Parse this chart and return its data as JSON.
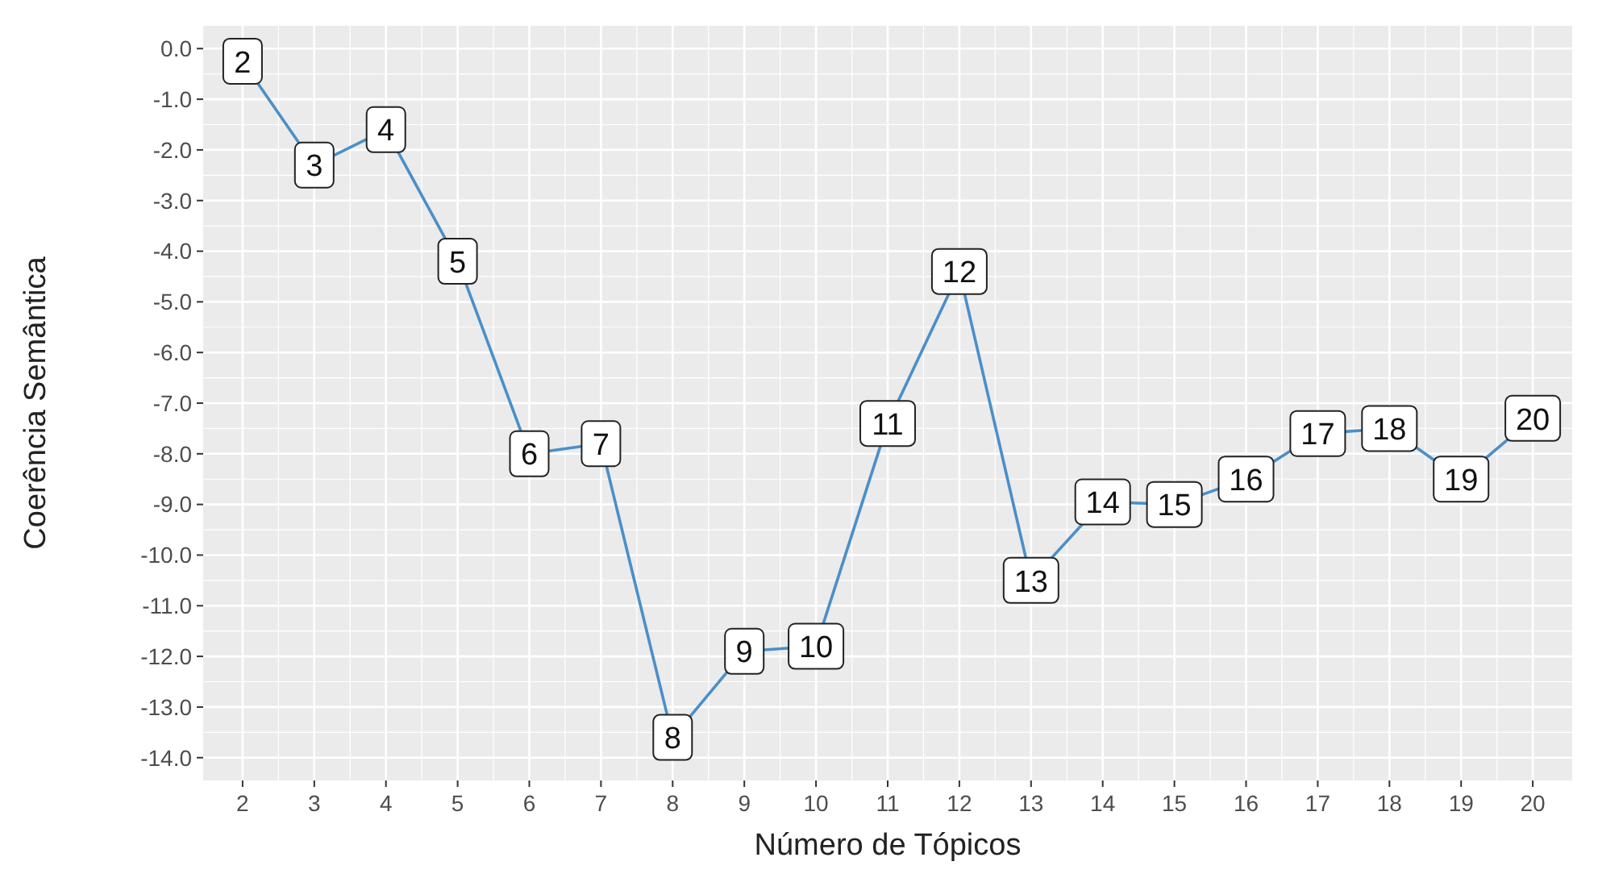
{
  "chart_data": {
    "type": "line",
    "xlabel": "Número de Tópicos",
    "ylabel": "Coerência Semântica",
    "x": [
      2,
      3,
      4,
      5,
      6,
      7,
      8,
      9,
      10,
      11,
      12,
      13,
      14,
      15,
      16,
      17,
      18,
      19,
      20
    ],
    "values": [
      -0.25,
      -2.3,
      -1.6,
      -4.2,
      -8.0,
      -7.8,
      -13.6,
      -11.9,
      -11.8,
      -7.4,
      -4.4,
      -10.5,
      -8.95,
      -9.0,
      -8.5,
      -7.6,
      -7.5,
      -8.5,
      -7.3
    ],
    "annotations": [
      {
        "text": "2",
        "x": 2,
        "y": -0.25
      },
      {
        "text": "3",
        "x": 3,
        "y": -2.3
      },
      {
        "text": "4",
        "x": 4,
        "y": -1.6
      },
      {
        "text": "5",
        "x": 5,
        "y": -4.2
      },
      {
        "text": "6",
        "x": 6,
        "y": -8.0
      },
      {
        "text": "7",
        "x": 7,
        "y": -7.8
      },
      {
        "text": "8",
        "x": 8,
        "y": -13.6
      },
      {
        "text": "9",
        "x": 9,
        "y": -11.9
      },
      {
        "text": "10",
        "x": 10,
        "y": -11.8
      },
      {
        "text": "11",
        "x": 11,
        "y": -7.4
      },
      {
        "text": "12",
        "x": 12,
        "y": -4.4
      },
      {
        "text": "13",
        "x": 13,
        "y": -10.5
      },
      {
        "text": "14",
        "x": 14,
        "y": -8.95
      },
      {
        "text": "15",
        "x": 15,
        "y": -9.0
      },
      {
        "text": "16",
        "x": 16,
        "y": -8.5
      },
      {
        "text": "17",
        "x": 17,
        "y": -7.6
      },
      {
        "text": "18",
        "x": 18,
        "y": -7.5
      },
      {
        "text": "19",
        "x": 19,
        "y": -8.5
      },
      {
        "text": "20",
        "x": 20,
        "y": -7.3
      }
    ],
    "color": "#4a8fc9",
    "xlim": [
      1.45,
      20.55
    ],
    "xticks": [
      2,
      3,
      4,
      5,
      6,
      7,
      8,
      9,
      10,
      11,
      12,
      13,
      14,
      15,
      16,
      17,
      18,
      19,
      20
    ],
    "ylim": [
      -14.45,
      0.45
    ],
    "yticks": [
      {
        "value": 0,
        "label": "0.0"
      },
      {
        "value": -1,
        "label": "-1.0"
      },
      {
        "value": -2,
        "label": "-2.0"
      },
      {
        "value": -3,
        "label": "-3.0"
      },
      {
        "value": -4,
        "label": "-4.0"
      },
      {
        "value": -5,
        "label": "-5.0"
      },
      {
        "value": -6,
        "label": "-6.0"
      },
      {
        "value": -7,
        "label": "-7.0"
      },
      {
        "value": -8,
        "label": "-8.0"
      },
      {
        "value": -9,
        "label": "-9.0"
      },
      {
        "value": -10,
        "label": "-10.0"
      },
      {
        "value": -11,
        "label": "-11.0"
      },
      {
        "value": -12,
        "label": "-12.0"
      },
      {
        "value": -13,
        "label": "-13.0"
      },
      {
        "value": -14,
        "label": "-14.0"
      }
    ],
    "grid": true,
    "marker": "square",
    "line_style": "solid"
  }
}
